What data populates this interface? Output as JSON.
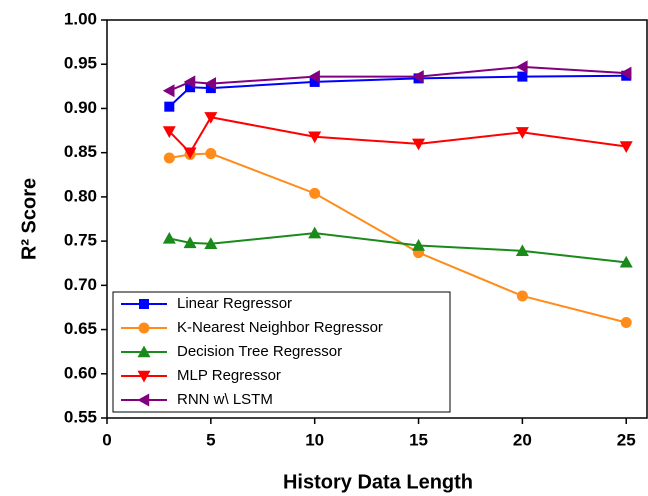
{
  "chart_data": {
    "type": "line",
    "xlabel": "History Data Length",
    "ylabel": "R² Score",
    "x": [
      3,
      4,
      5,
      10,
      15,
      20,
      25
    ],
    "series": [
      {
        "name": "Linear Regressor",
        "color": "#0000ff",
        "marker": "square",
        "values": [
          0.902,
          0.924,
          0.923,
          0.93,
          0.934,
          0.936,
          0.937
        ]
      },
      {
        "name": "K-Nearest Neighbor Regressor",
        "color": "#ff8c1a",
        "marker": "circle",
        "values": [
          0.844,
          0.848,
          0.849,
          0.804,
          0.737,
          0.688,
          0.658
        ]
      },
      {
        "name": "Decision Tree Regressor",
        "color": "#1a8a1a",
        "marker": "triangle-up",
        "values": [
          0.753,
          0.748,
          0.747,
          0.759,
          0.745,
          0.739,
          0.726
        ]
      },
      {
        "name": "MLP Regressor",
        "color": "#ff0000",
        "marker": "triangle-down",
        "values": [
          0.874,
          0.85,
          0.89,
          0.868,
          0.86,
          0.873,
          0.857
        ]
      },
      {
        "name": "RNN w\\ LSTM",
        "color": "#800080",
        "marker": "triangle-left",
        "values": [
          0.92,
          0.93,
          0.928,
          0.936,
          0.936,
          0.947,
          0.94
        ]
      }
    ],
    "xlim": [
      0,
      26
    ],
    "xticks": [
      0,
      5,
      10,
      15,
      20,
      25
    ],
    "ylim": [
      0.55,
      1.0
    ],
    "yticks": [
      0.55,
      {
        "value": 0.6,
        "label": "0.60"
      },
      0.65,
      {
        "value": 0.7,
        "label": "0.70"
      },
      0.75,
      {
        "value": 0.8,
        "label": "0.80"
      },
      0.85,
      {
        "value": 0.9,
        "label": "0.90"
      },
      0.95,
      {
        "value": 1.0,
        "label": "1.00"
      }
    ],
    "legend": "lower left"
  }
}
